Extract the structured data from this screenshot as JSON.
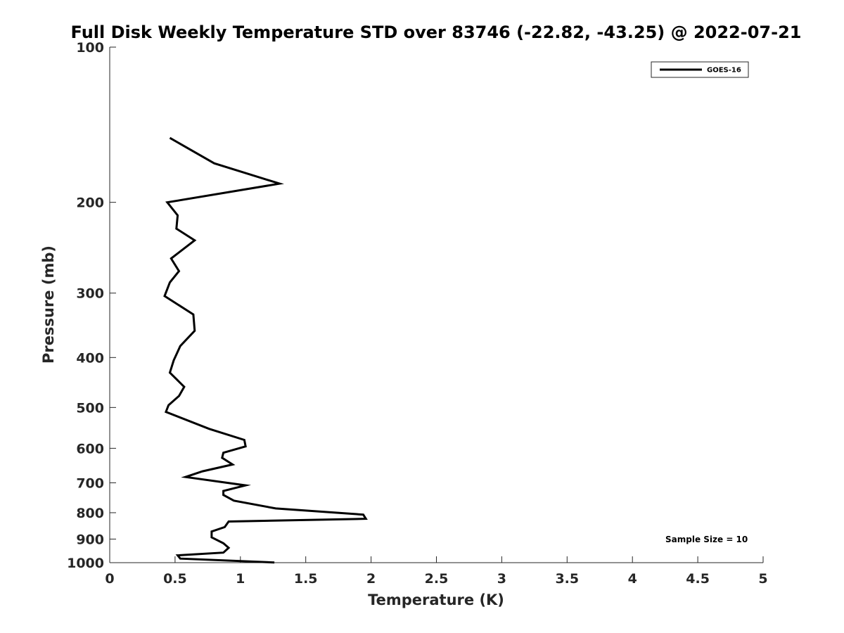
{
  "chart_data": {
    "type": "line",
    "title": "Full Disk Weekly Temperature STD over 83746 (-22.82, -43.25) @ 2022-07-21",
    "xlabel": "Temperature (K)",
    "ylabel": "Pressure (mb)",
    "xlim": [
      0,
      5
    ],
    "ylim": [
      100,
      1000
    ],
    "y_scale": "log",
    "y_reversed": true,
    "xticks": [
      0,
      0.5,
      1,
      1.5,
      2,
      2.5,
      3,
      3.5,
      4,
      4.5,
      5
    ],
    "xtick_labels": [
      "0",
      "0.5",
      "1",
      "1.5",
      "2",
      "2.5",
      "3",
      "3.5",
      "4",
      "4.5",
      "5"
    ],
    "yticks": [
      100,
      200,
      300,
      400,
      500,
      600,
      700,
      800,
      900,
      1000
    ],
    "ytick_labels": [
      "100",
      "200",
      "300",
      "400",
      "500",
      "600",
      "700",
      "800",
      "900",
      "1000"
    ],
    "grid": false,
    "legend_position": "top-right",
    "annotation": "Sample Size = 10",
    "series": [
      {
        "name": "GOES-16",
        "color": "#000000",
        "x": [
          0.46,
          0.8,
          1.3,
          0.44,
          0.52,
          0.51,
          0.65,
          0.47,
          0.53,
          0.46,
          0.42,
          0.64,
          0.65,
          0.54,
          0.49,
          0.46,
          0.57,
          0.53,
          0.45,
          0.43,
          0.76,
          1.03,
          1.04,
          0.87,
          0.86,
          0.94,
          0.71,
          0.58,
          1.04,
          0.87,
          0.87,
          0.95,
          1.27,
          1.94,
          1.96,
          0.91,
          0.88,
          0.78,
          0.78,
          0.87,
          0.91,
          0.87,
          0.52,
          0.54,
          1.26
        ],
        "y": [
          150,
          168,
          184,
          200,
          212,
          225,
          237,
          257,
          272,
          286,
          304,
          330,
          355,
          380,
          405,
          428,
          456,
          475,
          495,
          510,
          550,
          578,
          595,
          612,
          626,
          645,
          665,
          682,
          708,
          726,
          739,
          758,
          785,
          807,
          822,
          832,
          853,
          870,
          893,
          917,
          936,
          956,
          968,
          982,
          999
        ]
      }
    ]
  }
}
